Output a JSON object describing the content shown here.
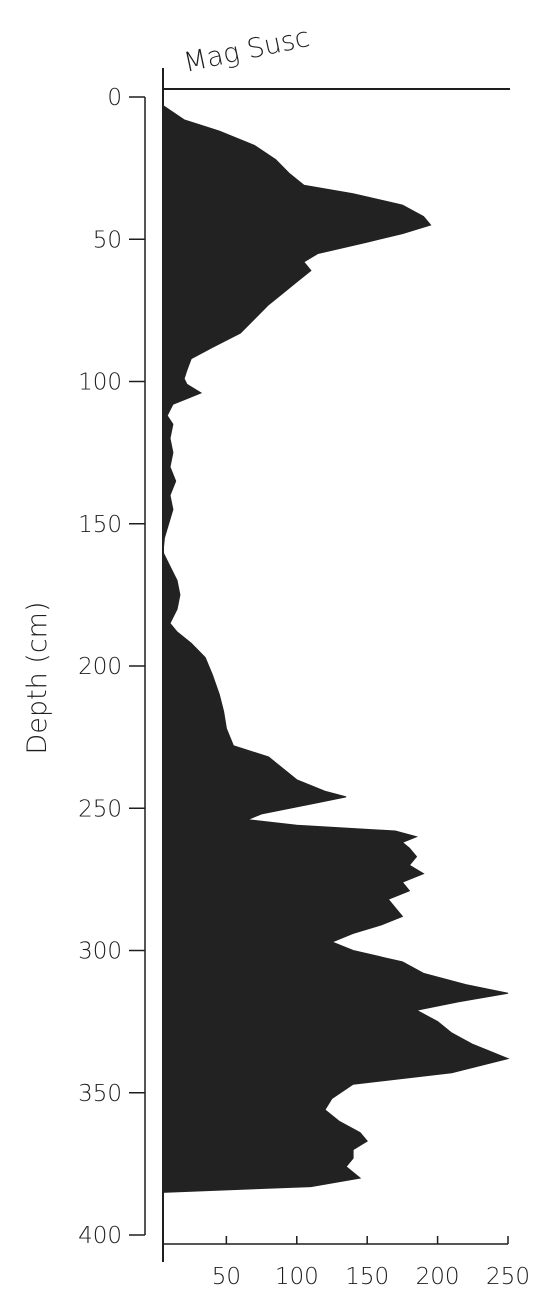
{
  "chart_data": {
    "type": "area",
    "title": "Mag Susc",
    "xlabel": "",
    "ylabel": "Depth (cm)",
    "orientation": "vertical-depth",
    "xlim": [
      5,
      250
    ],
    "ylim": [
      0,
      400
    ],
    "y_inverted": true,
    "x_ticks": [
      50,
      100,
      150,
      200,
      250
    ],
    "y_ticks": [
      0,
      50,
      100,
      150,
      200,
      250,
      300,
      350,
      400
    ],
    "x_tick_labels": [
      "50",
      "100",
      "150",
      "200",
      "250"
    ],
    "y_tick_labels": [
      "0",
      "50",
      "100",
      "150",
      "200",
      "250",
      "300",
      "350",
      "400"
    ],
    "fill_color": "#222222",
    "series": [
      {
        "depth": [
          3,
          8,
          12,
          17,
          22,
          27,
          31,
          34,
          38,
          42,
          45,
          48,
          51,
          55,
          58,
          61,
          65,
          69,
          73,
          78,
          83,
          88,
          92,
          96,
          99,
          101,
          104,
          106,
          108,
          112,
          115,
          120,
          125,
          130,
          135,
          140,
          145,
          150,
          155,
          160,
          165,
          170,
          175,
          180,
          185,
          188,
          192,
          197,
          203,
          210,
          216,
          222,
          228,
          232,
          236,
          240,
          244,
          246,
          248,
          250,
          252,
          254,
          256,
          258,
          260,
          262,
          264,
          267,
          270,
          273,
          276,
          279,
          282,
          285,
          288,
          291,
          294,
          297,
          300,
          304,
          308,
          312,
          315,
          318,
          321,
          325,
          329,
          333,
          338,
          343,
          347,
          352,
          356,
          360,
          364,
          367,
          370,
          373,
          376,
          380,
          383,
          385
        ],
        "values": [
          5,
          20,
          45,
          70,
          85,
          95,
          105,
          140,
          175,
          190,
          195,
          175,
          150,
          115,
          105,
          110,
          100,
          90,
          80,
          70,
          60,
          40,
          25,
          22,
          20,
          22,
          32,
          22,
          12,
          8,
          12,
          10,
          12,
          10,
          14,
          10,
          12,
          9,
          6,
          5,
          10,
          15,
          17,
          15,
          10,
          15,
          25,
          35,
          40,
          45,
          48,
          50,
          55,
          80,
          90,
          100,
          120,
          135,
          115,
          95,
          75,
          65,
          100,
          170,
          185,
          175,
          180,
          185,
          180,
          190,
          175,
          180,
          165,
          170,
          175,
          160,
          140,
          125,
          140,
          175,
          190,
          220,
          250,
          215,
          185,
          200,
          210,
          225,
          250,
          210,
          140,
          125,
          120,
          130,
          145,
          150,
          140,
          140,
          135,
          145,
          110,
          5
        ]
      }
    ]
  }
}
